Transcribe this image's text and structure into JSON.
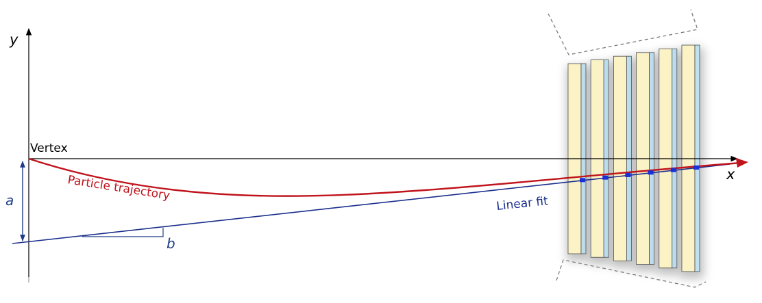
{
  "labels": {
    "y_axis": "y",
    "x_axis": "x",
    "vertex": "Vertex",
    "trajectory": "Particle trajectory",
    "linear_fit": "Linear fit",
    "intercept": "a",
    "slope": "b"
  },
  "colors": {
    "axis": "#000000",
    "trajectory": "#c0141c",
    "fit": "#1a2e8c",
    "annotation": "#1f3c88",
    "hit": "#1b2fd6",
    "sensor_front": "#fbf2c6",
    "sensor_back": "#bfe1f2",
    "sensor_edge": "#4d4d4d",
    "sensor_shadow": "#8a8a8a",
    "dashed_box": "#7a7a7a"
  },
  "detector": {
    "layer_count": 6
  }
}
